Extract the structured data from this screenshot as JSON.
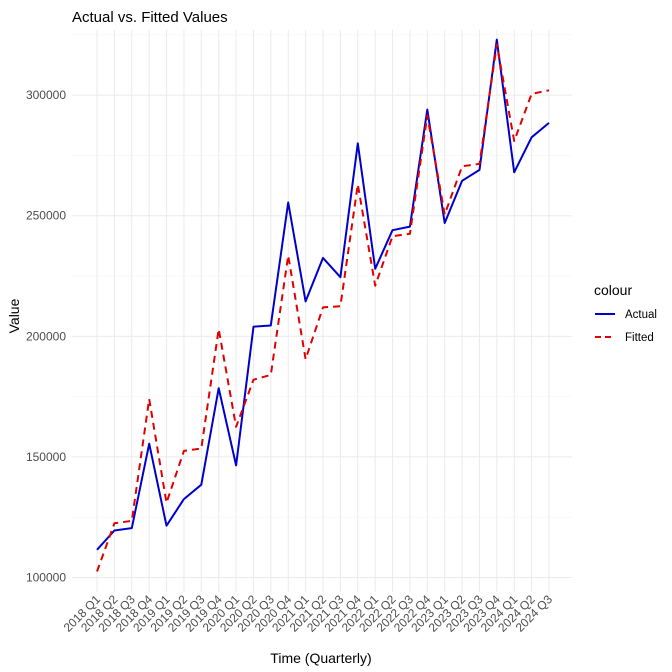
{
  "chart_data": {
    "type": "line",
    "title": "Actual vs. Fitted Values",
    "xlabel": "Time (Quarterly)",
    "ylabel": "Value",
    "categories": [
      "2018 Q1",
      "2018 Q2",
      "2018 Q3",
      "2018 Q4",
      "2019 Q1",
      "2019 Q2",
      "2019 Q3",
      "2019 Q4",
      "2020 Q1",
      "2020 Q2",
      "2020 Q3",
      "2020 Q4",
      "2021 Q1",
      "2021 Q2",
      "2021 Q3",
      "2021 Q4",
      "2022 Q1",
      "2022 Q2",
      "2022 Q3",
      "2022 Q4",
      "2023 Q1",
      "2023 Q2",
      "2023 Q3",
      "2023 Q4",
      "2024 Q1",
      "2024 Q2",
      "2024 Q3"
    ],
    "ylim": [
      94000,
      327000
    ],
    "yticks": [
      100000,
      150000,
      200000,
      250000,
      300000
    ],
    "ytick_labels": [
      "100000",
      "150000",
      "200000",
      "250000",
      "300000"
    ],
    "grid": true,
    "legend": {
      "title": "colour",
      "position": "right",
      "entries": [
        "Actual",
        "Fitted"
      ]
    },
    "series": [
      {
        "name": "Actual",
        "color": "#0000cd",
        "linestyle": "solid",
        "values": [
          111500,
          119500,
          120500,
          155500,
          121500,
          132500,
          138500,
          178500,
          146500,
          204000,
          204500,
          255500,
          214500,
          232500,
          224500,
          280000,
          228000,
          244000,
          245500,
          294000,
          247000,
          264500,
          269000,
          323000,
          268000,
          282500,
          288500
        ]
      },
      {
        "name": "Fitted",
        "color": "#e00000",
        "linestyle": "dashed",
        "values": [
          102500,
          122500,
          123500,
          174000,
          131000,
          152500,
          153500,
          203000,
          162500,
          182000,
          184000,
          233500,
          190500,
          212000,
          212500,
          263000,
          221000,
          241500,
          242500,
          291500,
          250500,
          270500,
          271500,
          321000,
          281000,
          300500,
          302000
        ]
      }
    ]
  }
}
